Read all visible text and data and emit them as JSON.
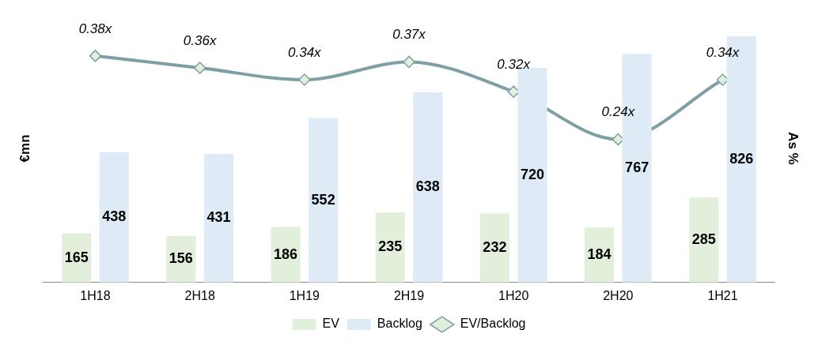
{
  "chart_data": {
    "type": "bar",
    "categories": [
      "1H18",
      "2H18",
      "1H19",
      "2H19",
      "1H20",
      "2H20",
      "1H21"
    ],
    "ylabel": "€mn",
    "y2label": "As %",
    "series": [
      {
        "name": "EV",
        "color": "#e2efda",
        "values": [
          165,
          156,
          186,
          235,
          232,
          184,
          285
        ]
      },
      {
        "name": "Backlog",
        "color": "#deebf7",
        "values": [
          438,
          431,
          552,
          638,
          720,
          767,
          826
        ]
      },
      {
        "name": "EV/Backlog",
        "type": "line",
        "axis": "y2",
        "color": "#7f9fa6",
        "marker": "diamond",
        "line_style": "solid",
        "values": [
          0.38,
          0.36,
          0.34,
          0.37,
          0.32,
          0.24,
          0.34
        ],
        "value_labels": [
          "0.38x",
          "0.36x",
          "0.34x",
          "0.37x",
          "0.32x",
          "0.24x",
          "0.34x"
        ]
      }
    ],
    "data_labels": true,
    "legend": "bottom",
    "grid": false
  }
}
